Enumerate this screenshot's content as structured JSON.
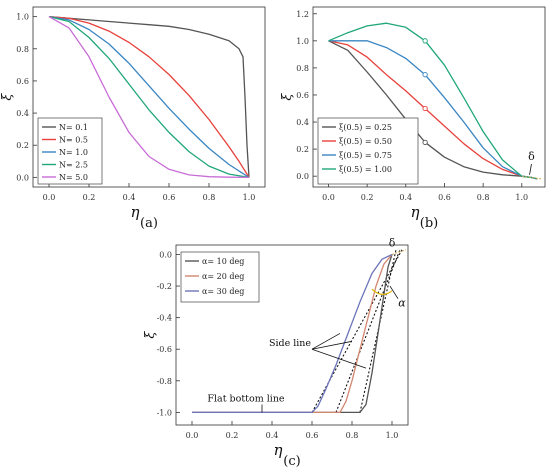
{
  "chart_data": [
    {
      "panel_label": "(a)",
      "type": "line",
      "xlabel": "η",
      "ylabel": "ξ",
      "xlim": [
        -0.08,
        1.08
      ],
      "ylim": [
        -0.06,
        1.06
      ],
      "xticks": [
        0.0,
        0.2,
        0.4,
        0.6,
        0.8,
        1.0
      ],
      "xtick_labels": [
        "0.0",
        "0.2",
        "0.4",
        "0.6",
        "0.8",
        "1.0"
      ],
      "yticks": [
        0.0,
        0.2,
        0.4,
        0.6,
        0.8,
        1.0
      ],
      "ytick_labels": [
        "0.0",
        "0.2",
        "0.4",
        "0.6",
        "0.8",
        "1.0"
      ],
      "grid": false,
      "legend_position": "bottom-left",
      "series": [
        {
          "name": "N= 0.1",
          "color": "#555555",
          "x": [
            0,
            0.1,
            0.2,
            0.3,
            0.4,
            0.5,
            0.6,
            0.7,
            0.8,
            0.9,
            0.95,
            0.97,
            0.98,
            0.99,
            1.0
          ],
          "y": [
            1,
            0.99,
            0.98,
            0.97,
            0.96,
            0.95,
            0.94,
            0.92,
            0.89,
            0.85,
            0.8,
            0.75,
            0.5,
            0.2,
            0
          ]
        },
        {
          "name": "N= 0.5",
          "color": "#e8413b",
          "x": [
            0,
            0.1,
            0.2,
            0.3,
            0.4,
            0.5,
            0.6,
            0.7,
            0.8,
            0.9,
            0.95,
            1.0
          ],
          "y": [
            1,
            0.99,
            0.96,
            0.91,
            0.84,
            0.75,
            0.64,
            0.51,
            0.36,
            0.19,
            0.1,
            0
          ]
        },
        {
          "name": "N= 1.0",
          "color": "#3a86c2",
          "x": [
            0,
            0.1,
            0.2,
            0.3,
            0.4,
            0.5,
            0.6,
            0.7,
            0.8,
            0.9,
            1.0
          ],
          "y": [
            1,
            0.98,
            0.92,
            0.83,
            0.71,
            0.57,
            0.43,
            0.3,
            0.18,
            0.08,
            0
          ]
        },
        {
          "name": "N= 2.5",
          "color": "#21a67a",
          "x": [
            0,
            0.1,
            0.2,
            0.3,
            0.4,
            0.5,
            0.6,
            0.7,
            0.8,
            0.9,
            1.0
          ],
          "y": [
            1,
            0.97,
            0.87,
            0.74,
            0.58,
            0.42,
            0.28,
            0.16,
            0.07,
            0.02,
            0
          ]
        },
        {
          "name": "N= 5.0",
          "color": "#c86dd6",
          "x": [
            0,
            0.1,
            0.2,
            0.3,
            0.4,
            0.5,
            0.6,
            0.7,
            0.8,
            0.9,
            1.0
          ],
          "y": [
            1,
            0.93,
            0.75,
            0.5,
            0.28,
            0.13,
            0.05,
            0.015,
            0.004,
            0.001,
            0
          ]
        }
      ]
    },
    {
      "panel_label": "(b)",
      "type": "line",
      "xlabel": "η",
      "ylabel": "ξ",
      "xlim": [
        -0.08,
        1.12
      ],
      "ylim": [
        -0.08,
        1.25
      ],
      "xticks": [
        0.0,
        0.2,
        0.4,
        0.6,
        0.8,
        1.0
      ],
      "xtick_labels": [
        "0.0",
        "0.2",
        "0.4",
        "0.6",
        "0.8",
        "1.0"
      ],
      "yticks": [
        0.0,
        0.2,
        0.4,
        0.6,
        0.8,
        1.0,
        1.2
      ],
      "ytick_labels": [
        "0.0",
        "0.2",
        "0.4",
        "0.6",
        "0.8",
        "1.0",
        "1.2"
      ],
      "grid": false,
      "legend_position": "bottom-left",
      "annotation": "δ",
      "series": [
        {
          "name": "ξ(0.5) = 0.25",
          "color": "#555555",
          "x": [
            0,
            0.1,
            0.2,
            0.3,
            0.4,
            0.5,
            0.6,
            0.7,
            0.8,
            0.9,
            1.0,
            1.05,
            1.08
          ],
          "y": [
            1,
            0.93,
            0.77,
            0.6,
            0.42,
            0.25,
            0.14,
            0.07,
            0.03,
            0.01,
            0,
            -0.01,
            -0.02
          ]
        },
        {
          "name": "ξ(0.5) = 0.50",
          "color": "#e8413b",
          "x": [
            0,
            0.1,
            0.2,
            0.3,
            0.4,
            0.5,
            0.6,
            0.7,
            0.8,
            0.9,
            1.0,
            1.05,
            1.08
          ],
          "y": [
            1,
            0.97,
            0.88,
            0.75,
            0.63,
            0.5,
            0.37,
            0.24,
            0.13,
            0.05,
            0,
            -0.01,
            -0.02
          ]
        },
        {
          "name": "ξ(0.5) = 0.75",
          "color": "#3a86c2",
          "x": [
            0,
            0.1,
            0.2,
            0.3,
            0.4,
            0.5,
            0.6,
            0.7,
            0.8,
            0.9,
            1.0,
            1.05,
            1.08
          ],
          "y": [
            1,
            1.0,
            1.0,
            0.95,
            0.87,
            0.75,
            0.58,
            0.4,
            0.21,
            0.07,
            0,
            -0.01,
            -0.02
          ]
        },
        {
          "name": "ξ(0.5) = 1.00",
          "color": "#21a67a",
          "x": [
            0,
            0.1,
            0.2,
            0.3,
            0.4,
            0.5,
            0.6,
            0.7,
            0.8,
            0.9,
            1.0,
            1.05,
            1.08
          ],
          "y": [
            1,
            1.06,
            1.11,
            1.13,
            1.1,
            1.0,
            0.82,
            0.58,
            0.33,
            0.12,
            0,
            -0.01,
            -0.02
          ]
        }
      ],
      "markers": {
        "x": [
          0.5,
          0.5,
          0.5,
          0.5
        ],
        "y": [
          0.25,
          0.5,
          0.75,
          1.0
        ]
      }
    },
    {
      "panel_label": "(c)",
      "type": "line",
      "xlabel": "η",
      "ylabel": "ξ",
      "xlim": [
        -0.08,
        1.08
      ],
      "ylim": [
        -1.08,
        0.06
      ],
      "xticks": [
        0.0,
        0.2,
        0.4,
        0.6,
        0.8,
        1.0
      ],
      "xtick_labels": [
        "0.0",
        "0.2",
        "0.4",
        "0.6",
        "0.8",
        "1.0"
      ],
      "yticks": [
        -1.0,
        -0.8,
        -0.6,
        -0.4,
        -0.2,
        0.0
      ],
      "ytick_labels": [
        "-1.0",
        "-0.8",
        "-0.6",
        "-0.4",
        "-0.2",
        "0.0"
      ],
      "grid": false,
      "legend_position": "top-left",
      "annotations": [
        "Side line",
        "Flat bottom line",
        "α",
        "δ"
      ],
      "series": [
        {
          "name": "α= 10 deg",
          "color": "#555555",
          "x": [
            0,
            0.1,
            0.2,
            0.3,
            0.4,
            0.5,
            0.6,
            0.7,
            0.75,
            0.8,
            0.84,
            0.87,
            0.9,
            0.93,
            0.96,
            0.98,
            1.0
          ],
          "y": [
            -1,
            -1,
            -1,
            -1,
            -1,
            -1,
            -1,
            -1,
            -1,
            -1,
            -1,
            -0.95,
            -0.75,
            -0.5,
            -0.25,
            -0.08,
            0
          ]
        },
        {
          "name": "α= 20 deg",
          "color": "#d2866f",
          "x": [
            0,
            0.1,
            0.2,
            0.3,
            0.4,
            0.5,
            0.6,
            0.7,
            0.74,
            0.77,
            0.8,
            0.84,
            0.88,
            0.92,
            0.96,
            1.0
          ],
          "y": [
            -1,
            -1,
            -1,
            -1,
            -1,
            -1,
            -1,
            -1,
            -1,
            -0.93,
            -0.8,
            -0.6,
            -0.4,
            -0.2,
            -0.06,
            0
          ]
        },
        {
          "name": "α= 30 deg",
          "color": "#6b74b8",
          "x": [
            0,
            0.1,
            0.2,
            0.3,
            0.4,
            0.5,
            0.55,
            0.6,
            0.63,
            0.67,
            0.72,
            0.78,
            0.84,
            0.9,
            0.95,
            1.0
          ],
          "y": [
            -1,
            -1,
            -1,
            -1,
            -1,
            -1,
            -1,
            -1,
            -0.96,
            -0.85,
            -0.7,
            -0.5,
            -0.3,
            -0.12,
            -0.03,
            0
          ]
        }
      ],
      "side_lines": [
        {
          "x": [
            0.6,
            1.05
          ],
          "y": [
            -1.0,
            0.03
          ]
        },
        {
          "x": [
            0.72,
            1.04
          ],
          "y": [
            -1.0,
            0.03
          ]
        },
        {
          "x": [
            0.84,
            1.02
          ],
          "y": [
            -1.0,
            0.03
          ]
        }
      ]
    }
  ]
}
